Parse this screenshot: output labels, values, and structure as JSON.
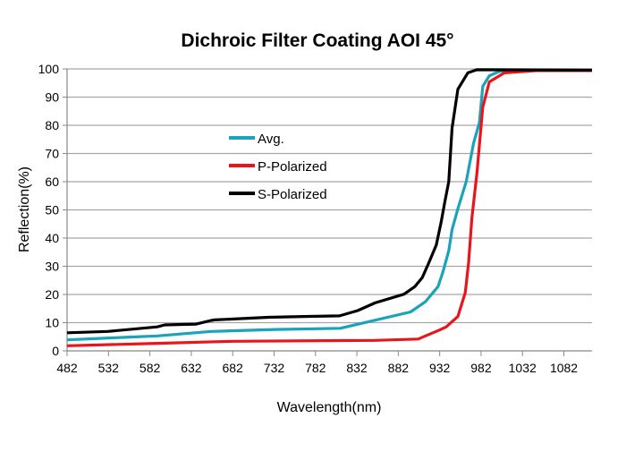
{
  "chart_data": {
    "type": "line",
    "title": "Dichroic Filter Coating AOI 45°",
    "xlabel": "Wavelength(nm)",
    "ylabel": "Reflection(%)",
    "xlim": [
      482,
      1116
    ],
    "ylim": [
      0,
      100
    ],
    "xticks": [
      482,
      532,
      582,
      632,
      682,
      732,
      782,
      832,
      882,
      932,
      982,
      1032,
      1082
    ],
    "yticks": [
      0,
      10,
      20,
      30,
      40,
      50,
      60,
      70,
      80,
      90,
      100
    ],
    "grid": "horizontal",
    "legend": "center-left",
    "series": [
      {
        "name": "Avg.",
        "color": "#1ba3b8",
        "x": [
          482,
          552,
          591,
          656,
          733,
          812,
          834,
          897,
          915,
          930,
          936,
          943,
          947,
          954,
          964,
          973,
          980,
          984,
          992,
          1005,
          1025,
          1116
        ],
        "y": [
          3.9,
          4.8,
          5.3,
          6.9,
          7.6,
          8.0,
          9.5,
          13.8,
          17.5,
          22.8,
          28,
          35.5,
          43,
          50.4,
          60,
          73.7,
          81,
          93.8,
          97.6,
          99.2,
          99.6,
          99.6
        ]
      },
      {
        "name": "P-Polarized",
        "color": "#e8161c",
        "x": [
          482,
          596,
          682,
          853,
          906,
          919,
          932,
          940,
          954,
          963,
          967,
          971,
          977,
          984,
          992,
          1010,
          1049,
          1116
        ],
        "y": [
          1.8,
          2.7,
          3.4,
          3.7,
          4.2,
          5.8,
          7.4,
          8.5,
          12.2,
          20.7,
          31.3,
          47.2,
          63,
          86.4,
          95.4,
          98.6,
          99.4,
          99.4
        ]
      },
      {
        "name": "S-Polarized",
        "color": "#000000",
        "x": [
          482,
          531,
          591,
          600,
          638,
          656,
          660,
          725,
          768,
          811,
          833,
          854,
          889,
          902,
          911,
          919,
          928,
          934,
          938,
          943,
          947,
          954,
          966,
          977,
          1116
        ],
        "y": [
          6.4,
          6.9,
          8.5,
          9.2,
          9.5,
          10.8,
          11,
          11.9,
          12.2,
          12.4,
          14.3,
          17,
          20.1,
          22.8,
          26,
          31.3,
          37.6,
          46,
          52.5,
          60,
          79,
          92.8,
          98.6,
          99.7,
          99.6
        ]
      }
    ]
  }
}
